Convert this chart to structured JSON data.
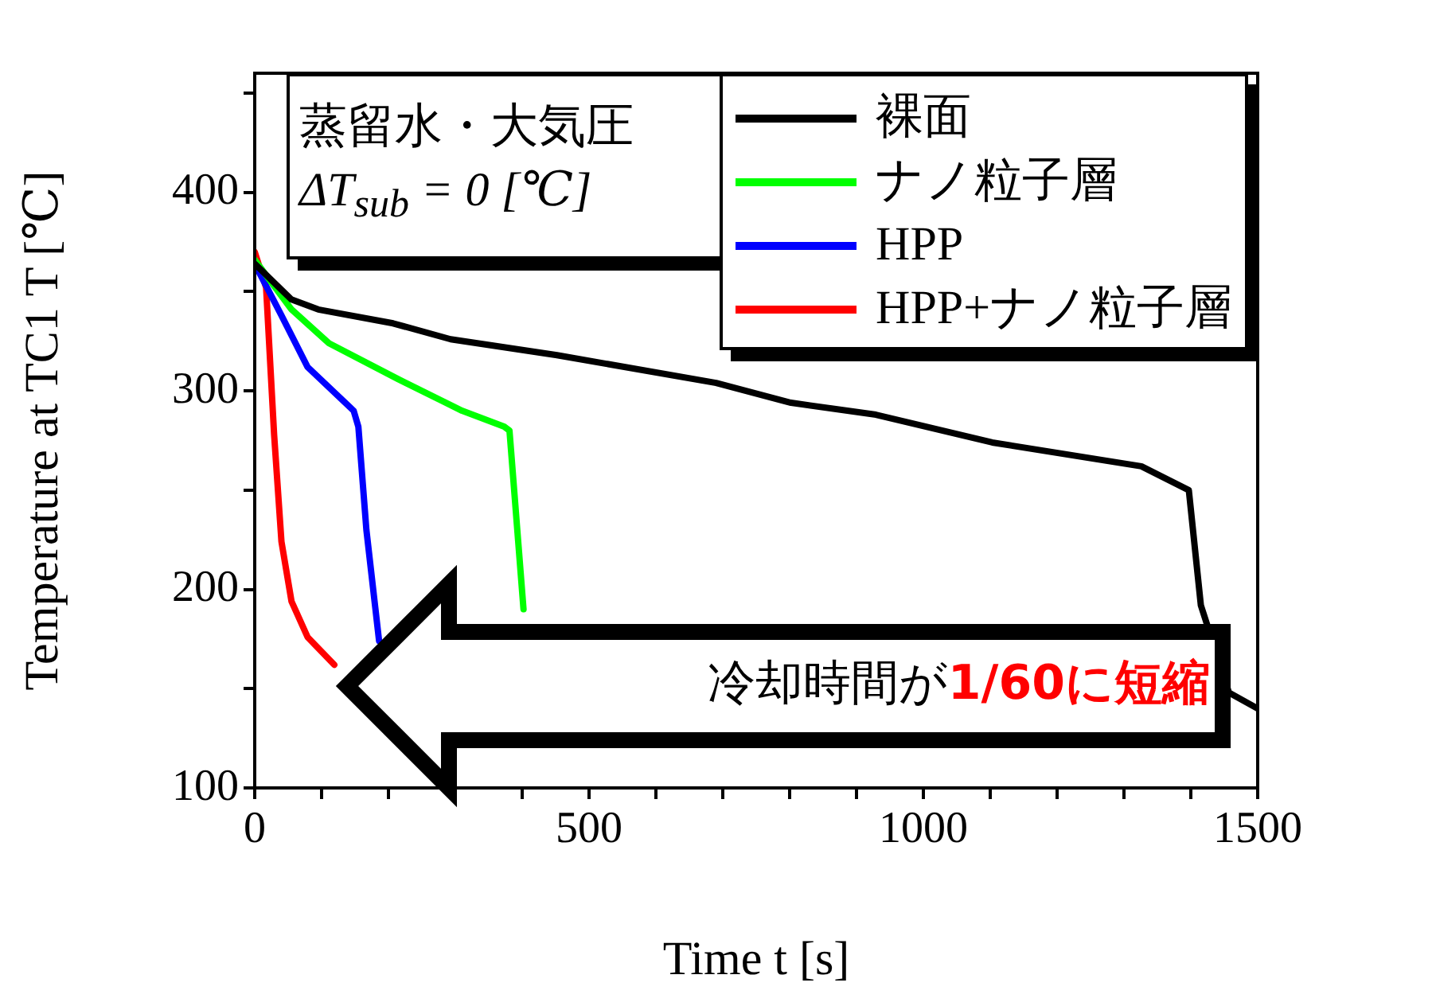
{
  "chart_data": {
    "type": "line",
    "xlabel": "Time t [s]",
    "ylabel": "Temperature at TC1 T [℃]",
    "annotations": [
      "蒸留水・大気圧",
      "ΔT$_{sub}$ = 0 [℃]",
      "冷却時間が",
      "1/60に短縮"
    ],
    "xlim": [
      0,
      1500
    ],
    "ylim": [
      100,
      460
    ],
    "xticks": [
      0,
      {
        "value": 100,
        "label": null
      },
      {
        "value": 200,
        "label": null
      },
      {
        "value": 300,
        "label": null
      },
      {
        "value": 400,
        "label": null
      },
      500,
      {
        "value": 600,
        "label": null
      },
      {
        "value": 700,
        "label": null
      },
      {
        "value": 800,
        "label": null
      },
      {
        "value": 900,
        "label": null
      },
      1000,
      {
        "value": 1100,
        "label": null
      },
      {
        "value": 1200,
        "label": null
      },
      {
        "value": 1300,
        "label": null
      },
      {
        "value": 1400,
        "label": null
      },
      1500
    ],
    "yticks": [
      100,
      {
        "value": 150,
        "label": null
      },
      200,
      {
        "value": 250,
        "label": null
      },
      300,
      {
        "value": 350,
        "label": null
      },
      400,
      {
        "value": 450,
        "label": null
      }
    ],
    "legend": "top right",
    "series": [
      {
        "name": "裸面",
        "color": "#000000",
        "x": [
          0,
          55,
          95,
          207,
          293,
          452,
          690,
          802,
          929,
          1103,
          1326,
          1397,
          1415,
          1457,
          1500
        ],
        "values": [
          364,
          346,
          341,
          334,
          326,
          318,
          304,
          294,
          288,
          274,
          262,
          250,
          192,
          148,
          140
        ]
      },
      {
        "name": "ナノ粒子層",
        "color": "#00ff00",
        "x": [
          0,
          55,
          111,
          214,
          310,
          373,
          381,
          402
        ],
        "values": [
          366,
          341,
          324,
          306,
          290,
          282,
          280,
          190
        ]
      },
      {
        "name": "HPP",
        "color": "#0000ff",
        "x": [
          0,
          40,
          79,
          148,
          155,
          167,
          186
        ],
        "values": [
          364,
          338,
          312,
          290,
          282,
          230,
          174
        ]
      },
      {
        "name": "HPP+ナノ粒子層",
        "color": "#ff0000",
        "x": [
          0,
          17,
          29,
          40,
          55,
          79,
          119
        ],
        "values": [
          370,
          352,
          278,
          224,
          194,
          176,
          162
        ]
      }
    ]
  }
}
